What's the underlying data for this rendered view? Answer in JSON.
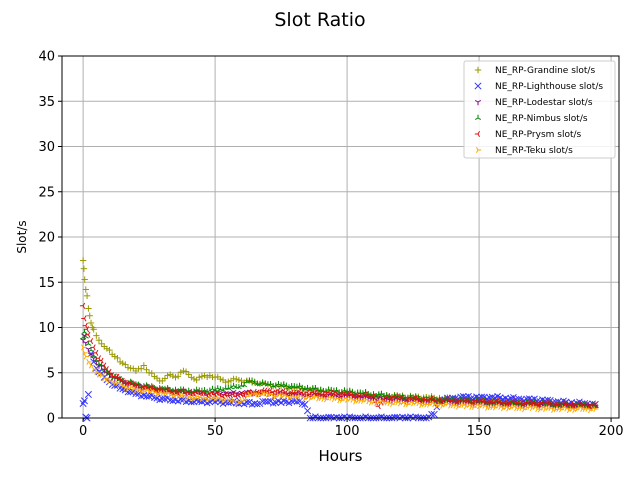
{
  "chart_data": {
    "type": "scatter",
    "title": "Slot Ratio",
    "xlabel": "Hours",
    "ylabel": "Slot/s",
    "xlim": [
      -8,
      203
    ],
    "ylim": [
      0,
      40
    ],
    "xticks": [
      0,
      50,
      100,
      150,
      200
    ],
    "yticks": [
      0,
      5,
      10,
      15,
      20,
      25,
      30,
      35,
      40
    ],
    "grid": true,
    "legend_position": "top-right",
    "series": [
      {
        "name": "NE_RP-Grandine slot/s",
        "color": "#999900",
        "marker": "plus",
        "points": [
          [
            0,
            17.4
          ],
          [
            0.3,
            16.5
          ],
          [
            0.6,
            15.3
          ],
          [
            1,
            14.2
          ],
          [
            1.5,
            13.5
          ],
          [
            2,
            12.1
          ],
          [
            2.5,
            11.3
          ],
          [
            3,
            10.5
          ],
          [
            3.5,
            10.0
          ],
          [
            4,
            9.8
          ],
          [
            5,
            9.1
          ],
          [
            6,
            8.6
          ],
          [
            7,
            8.2
          ],
          [
            8,
            7.9
          ],
          [
            10,
            7.5
          ],
          [
            12,
            6.8
          ],
          [
            14,
            6.2
          ],
          [
            16,
            5.9
          ],
          [
            18,
            5.5
          ],
          [
            20,
            5.2
          ],
          [
            23,
            5.8
          ],
          [
            25,
            5.0
          ],
          [
            28,
            4.4
          ],
          [
            30,
            4.1
          ],
          [
            33,
            4.8
          ],
          [
            35,
            4.5
          ],
          [
            38,
            5.2
          ],
          [
            40,
            4.8
          ],
          [
            43,
            4.2
          ],
          [
            45,
            4.6
          ],
          [
            48,
            4.7
          ],
          [
            50,
            4.5
          ],
          [
            53,
            4.2
          ],
          [
            55,
            4.0
          ],
          [
            58,
            4.3
          ],
          [
            60,
            4.1
          ],
          [
            65,
            4.0
          ],
          [
            70,
            3.7
          ],
          [
            75,
            3.5
          ],
          [
            80,
            3.3
          ],
          [
            85,
            3.3
          ],
          [
            90,
            3.1
          ],
          [
            95,
            2.9
          ],
          [
            100,
            2.8
          ],
          [
            105,
            2.7
          ],
          [
            110,
            2.6
          ],
          [
            115,
            2.5
          ],
          [
            120,
            2.4
          ],
          [
            125,
            2.3
          ],
          [
            130,
            2.3
          ],
          [
            135,
            2.2
          ],
          [
            140,
            2.1
          ],
          [
            145,
            2.0
          ],
          [
            150,
            2.0
          ],
          [
            155,
            1.9
          ],
          [
            160,
            1.8
          ],
          [
            165,
            1.7
          ],
          [
            170,
            1.6
          ],
          [
            175,
            1.6
          ],
          [
            180,
            1.5
          ],
          [
            185,
            1.5
          ],
          [
            190,
            1.4
          ],
          [
            194,
            1.4
          ]
        ]
      },
      {
        "name": "NE_RP-Lighthouse slot/s",
        "color": "#3333ff",
        "marker": "x",
        "points": [
          [
            0,
            1.6
          ],
          [
            0.5,
            1.9
          ],
          [
            1,
            0.1
          ],
          [
            1.5,
            0.0
          ],
          [
            2,
            2.6
          ],
          [
            3,
            7.1
          ],
          [
            4,
            6.2
          ],
          [
            5,
            5.5
          ],
          [
            6,
            5.1
          ],
          [
            8,
            4.5
          ],
          [
            10,
            4.0
          ],
          [
            12,
            3.6
          ],
          [
            14,
            3.3
          ],
          [
            16,
            3.1
          ],
          [
            18,
            2.9
          ],
          [
            20,
            2.7
          ],
          [
            23,
            2.5
          ],
          [
            25,
            2.4
          ],
          [
            28,
            2.2
          ],
          [
            30,
            2.1
          ],
          [
            35,
            2.0
          ],
          [
            40,
            1.9
          ],
          [
            45,
            1.8
          ],
          [
            50,
            1.8
          ],
          [
            55,
            1.7
          ],
          [
            60,
            1.7
          ],
          [
            65,
            1.6
          ],
          [
            70,
            1.8
          ],
          [
            75,
            1.7
          ],
          [
            80,
            1.9
          ],
          [
            84,
            1.5
          ],
          [
            85,
            0.8
          ],
          [
            86,
            0.0
          ],
          [
            90,
            0.0
          ],
          [
            95,
            0.0
          ],
          [
            100,
            0.0
          ],
          [
            105,
            0.0
          ],
          [
            110,
            0.0
          ],
          [
            115,
            0.0
          ],
          [
            120,
            0.0
          ],
          [
            125,
            0.0
          ],
          [
            130,
            0.0
          ],
          [
            133,
            0.4
          ],
          [
            135,
            1.9
          ],
          [
            140,
            2.2
          ],
          [
            145,
            2.3
          ],
          [
            150,
            2.2
          ],
          [
            155,
            2.3
          ],
          [
            160,
            2.2
          ],
          [
            165,
            2.1
          ],
          [
            170,
            2.0
          ],
          [
            175,
            1.9
          ],
          [
            180,
            1.8
          ],
          [
            185,
            1.7
          ],
          [
            190,
            1.6
          ],
          [
            194,
            1.5
          ]
        ]
      },
      {
        "name": "NE_RP-Lodestar slot/s",
        "color": "#880088",
        "marker": "tri_down",
        "points": [
          [
            0,
            8.6
          ],
          [
            0.5,
            9.1
          ],
          [
            1,
            8.3
          ],
          [
            2,
            7.6
          ],
          [
            3,
            7.0
          ],
          [
            4,
            6.6
          ],
          [
            5,
            6.2
          ],
          [
            6,
            5.8
          ],
          [
            8,
            5.3
          ],
          [
            10,
            4.8
          ],
          [
            12,
            4.4
          ],
          [
            15,
            4.0
          ],
          [
            20,
            3.6
          ],
          [
            25,
            3.3
          ],
          [
            30,
            3.1
          ],
          [
            35,
            3.0
          ],
          [
            40,
            2.9
          ],
          [
            45,
            2.8
          ],
          [
            50,
            2.7
          ],
          [
            55,
            2.7
          ],
          [
            60,
            2.8
          ],
          [
            65,
            2.8
          ],
          [
            70,
            2.7
          ],
          [
            75,
            2.6
          ],
          [
            80,
            2.6
          ],
          [
            85,
            2.5
          ],
          [
            90,
            2.5
          ],
          [
            95,
            2.4
          ],
          [
            100,
            2.4
          ],
          [
            105,
            2.3
          ],
          [
            110,
            2.2
          ],
          [
            115,
            2.1
          ],
          [
            120,
            2.0
          ],
          [
            125,
            1.9
          ],
          [
            130,
            1.9
          ],
          [
            135,
            1.8
          ],
          [
            140,
            1.8
          ],
          [
            145,
            1.7
          ],
          [
            150,
            1.7
          ],
          [
            155,
            1.6
          ],
          [
            160,
            1.6
          ],
          [
            165,
            1.5
          ],
          [
            170,
            1.5
          ],
          [
            175,
            1.5
          ],
          [
            180,
            1.4
          ],
          [
            185,
            1.4
          ],
          [
            190,
            1.4
          ],
          [
            194,
            1.3
          ]
        ]
      },
      {
        "name": "NE_RP-Nimbus slot/s",
        "color": "#008800",
        "marker": "tri_up",
        "points": [
          [
            0,
            8.9
          ],
          [
            0.5,
            9.5
          ],
          [
            1,
            9.0
          ],
          [
            2,
            8.2
          ],
          [
            3,
            7.5
          ],
          [
            4,
            6.9
          ],
          [
            5,
            6.4
          ],
          [
            6,
            6.0
          ],
          [
            8,
            5.4
          ],
          [
            10,
            4.9
          ],
          [
            12,
            4.5
          ],
          [
            15,
            4.1
          ],
          [
            20,
            3.7
          ],
          [
            25,
            3.4
          ],
          [
            30,
            3.2
          ],
          [
            35,
            3.1
          ],
          [
            40,
            3.0
          ],
          [
            45,
            3.0
          ],
          [
            50,
            3.1
          ],
          [
            55,
            3.3
          ],
          [
            60,
            3.6
          ],
          [
            63,
            4.1
          ],
          [
            65,
            3.9
          ],
          [
            70,
            3.7
          ],
          [
            75,
            3.6
          ],
          [
            80,
            3.5
          ],
          [
            85,
            3.3
          ],
          [
            90,
            3.1
          ],
          [
            95,
            3.0
          ],
          [
            100,
            2.9
          ],
          [
            105,
            2.8
          ],
          [
            110,
            2.6
          ],
          [
            115,
            2.5
          ],
          [
            120,
            2.3
          ],
          [
            125,
            2.2
          ],
          [
            130,
            2.1
          ],
          [
            135,
            2.0
          ],
          [
            140,
            2.0
          ],
          [
            145,
            1.9
          ],
          [
            150,
            1.8
          ],
          [
            155,
            1.7
          ],
          [
            160,
            1.7
          ],
          [
            165,
            1.6
          ],
          [
            170,
            1.6
          ],
          [
            175,
            1.5
          ],
          [
            180,
            1.5
          ],
          [
            185,
            1.4
          ],
          [
            190,
            1.4
          ],
          [
            194,
            1.3
          ]
        ]
      },
      {
        "name": "NE_RP-Prysm slot/s",
        "color": "#dd1111",
        "marker": "tri_left",
        "points": [
          [
            0,
            12.4
          ],
          [
            0.5,
            11.0
          ],
          [
            1,
            10.2
          ],
          [
            1.5,
            9.8
          ],
          [
            2,
            9.2
          ],
          [
            3,
            8.5
          ],
          [
            4,
            7.8
          ],
          [
            5,
            7.2
          ],
          [
            6,
            6.6
          ],
          [
            8,
            5.8
          ],
          [
            10,
            5.1
          ],
          [
            12,
            4.6
          ],
          [
            15,
            4.1
          ],
          [
            20,
            3.6
          ],
          [
            25,
            3.3
          ],
          [
            30,
            3.1
          ],
          [
            35,
            2.9
          ],
          [
            40,
            2.8
          ],
          [
            45,
            2.7
          ],
          [
            50,
            2.6
          ],
          [
            55,
            2.5
          ],
          [
            58,
            2.4
          ],
          [
            60,
            2.6
          ],
          [
            65,
            2.9
          ],
          [
            70,
            3.0
          ],
          [
            75,
            2.9
          ],
          [
            80,
            2.8
          ],
          [
            85,
            2.8
          ],
          [
            90,
            2.7
          ],
          [
            95,
            2.7
          ],
          [
            100,
            2.6
          ],
          [
            105,
            2.5
          ],
          [
            110,
            2.4
          ],
          [
            112,
            1.3
          ],
          [
            115,
            2.3
          ],
          [
            120,
            2.2
          ],
          [
            125,
            2.1
          ],
          [
            130,
            2.0
          ],
          [
            135,
            2.0
          ],
          [
            140,
            1.9
          ],
          [
            145,
            1.9
          ],
          [
            150,
            1.8
          ],
          [
            155,
            1.8
          ],
          [
            160,
            1.7
          ],
          [
            165,
            1.7
          ],
          [
            170,
            1.6
          ],
          [
            175,
            1.6
          ],
          [
            180,
            1.5
          ],
          [
            185,
            1.5
          ],
          [
            190,
            1.4
          ],
          [
            194,
            1.4
          ]
        ]
      },
      {
        "name": "NE_RP-Teku slot/s",
        "color": "#ffaa00",
        "marker": "tri_right",
        "points": [
          [
            0,
            7.8
          ],
          [
            0.5,
            7.2
          ],
          [
            1,
            6.8
          ],
          [
            2,
            6.2
          ],
          [
            3,
            5.8
          ],
          [
            4,
            5.4
          ],
          [
            5,
            5.1
          ],
          [
            6,
            4.8
          ],
          [
            8,
            4.4
          ],
          [
            10,
            4.1
          ],
          [
            12,
            3.8
          ],
          [
            15,
            3.5
          ],
          [
            20,
            3.1
          ],
          [
            25,
            2.9
          ],
          [
            30,
            2.7
          ],
          [
            35,
            2.5
          ],
          [
            40,
            2.3
          ],
          [
            45,
            2.2
          ],
          [
            50,
            2.1
          ],
          [
            55,
            2.0
          ],
          [
            58,
            1.6
          ],
          [
            60,
            1.9
          ],
          [
            62,
            2.4
          ],
          [
            65,
            2.7
          ],
          [
            70,
            2.6
          ],
          [
            75,
            2.4
          ],
          [
            80,
            2.3
          ],
          [
            85,
            2.3
          ],
          [
            90,
            2.2
          ],
          [
            95,
            2.1
          ],
          [
            100,
            2.0
          ],
          [
            105,
            1.9
          ],
          [
            110,
            1.8
          ],
          [
            115,
            1.7
          ],
          [
            120,
            1.6
          ],
          [
            125,
            1.6
          ],
          [
            130,
            1.5
          ],
          [
            135,
            1.5
          ],
          [
            140,
            1.4
          ],
          [
            145,
            1.3
          ],
          [
            150,
            1.3
          ],
          [
            155,
            1.2
          ],
          [
            160,
            1.2
          ],
          [
            165,
            1.1
          ],
          [
            170,
            1.1
          ],
          [
            175,
            1.0
          ],
          [
            180,
            1.0
          ],
          [
            185,
            1.0
          ],
          [
            190,
            1.0
          ],
          [
            194,
            1.0
          ]
        ]
      }
    ]
  }
}
